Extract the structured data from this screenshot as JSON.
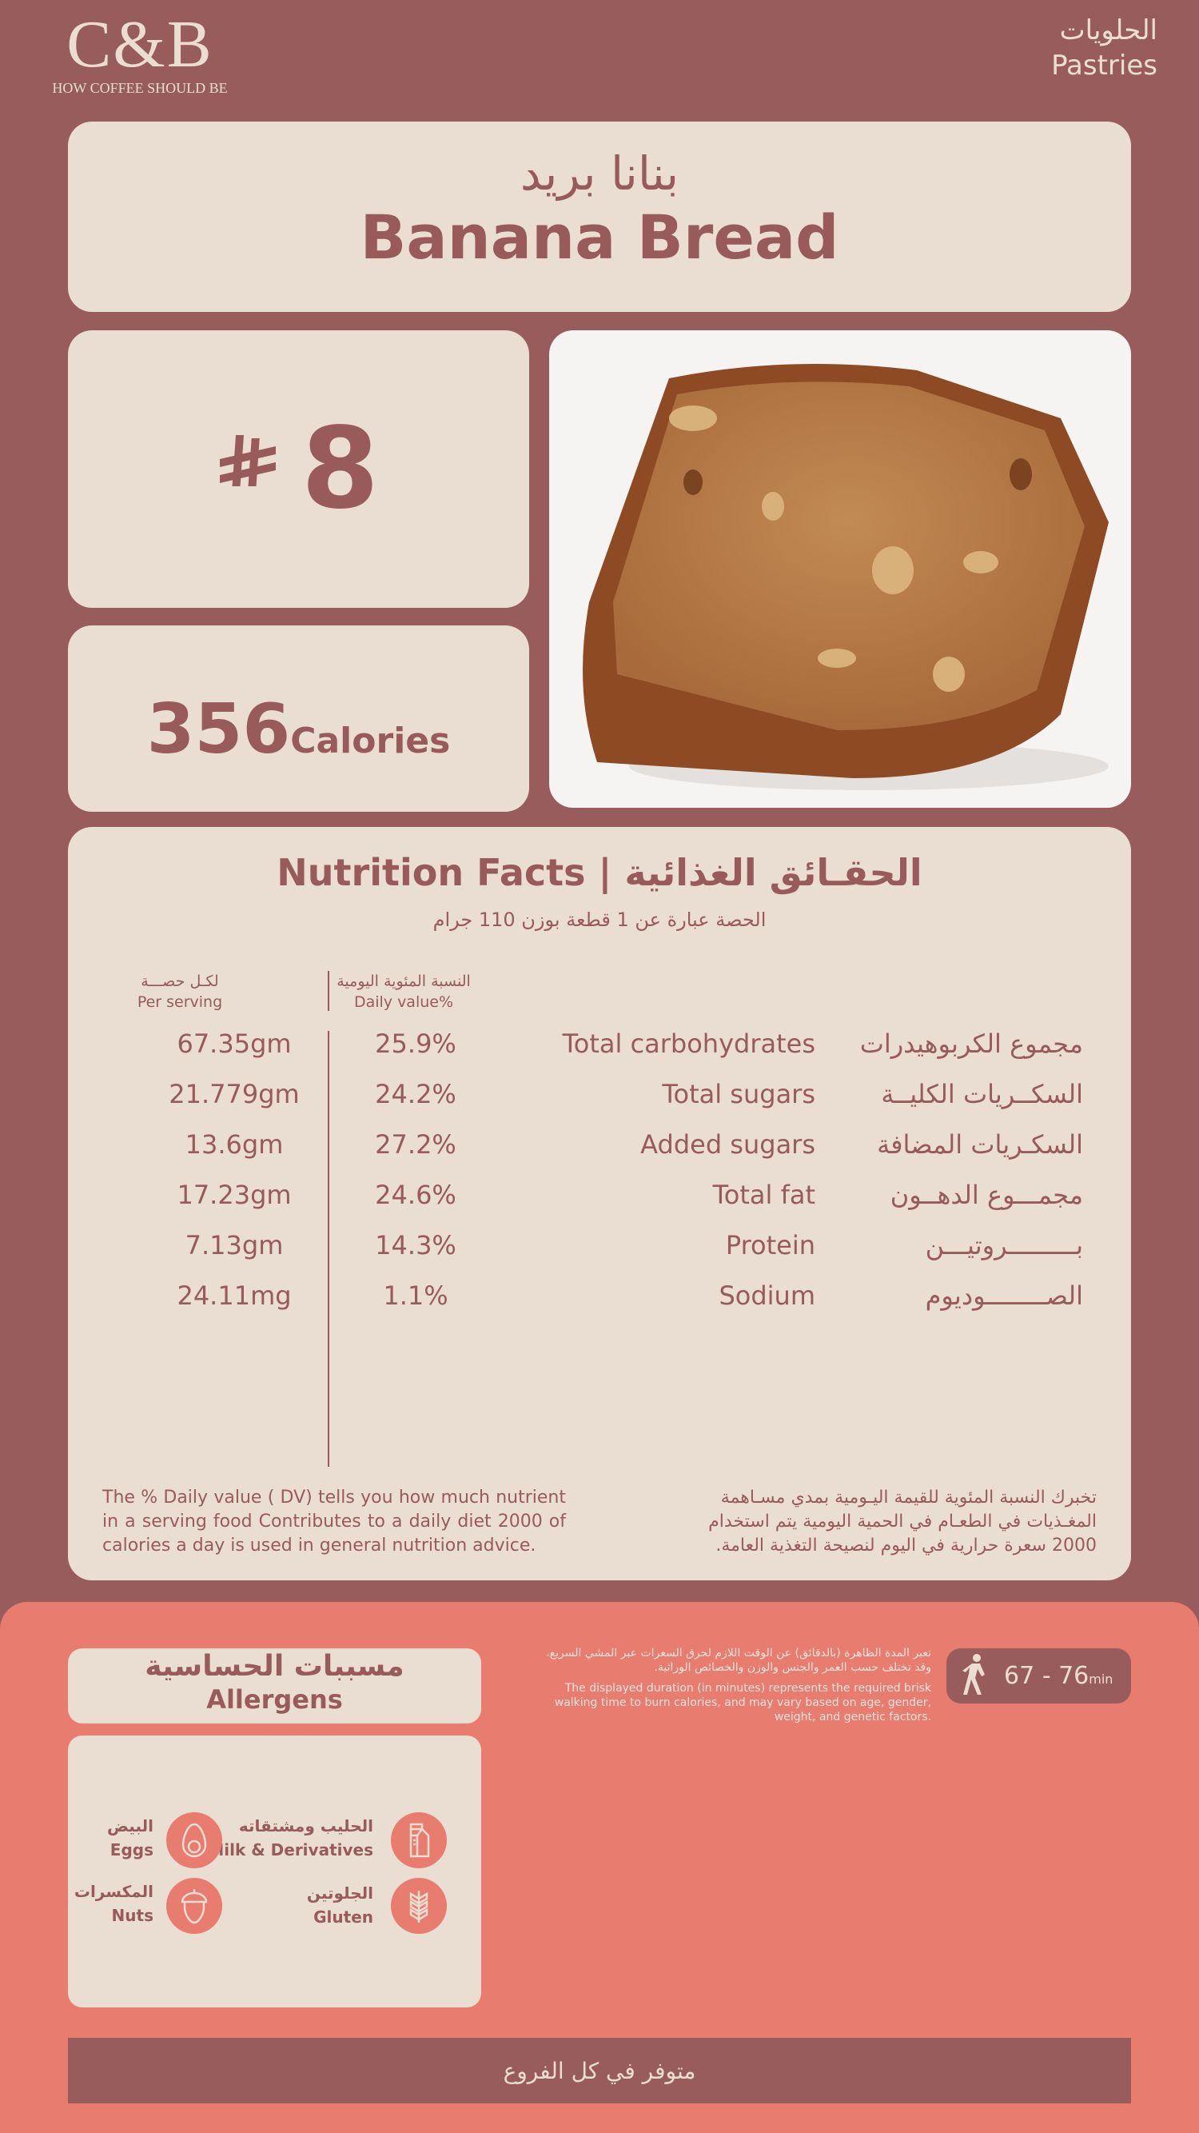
{
  "brand": {
    "logo_text": "C&B",
    "tagline": "HOW COFFEE SHOULD BE"
  },
  "category": {
    "ar": "الحلويات",
    "en": "Pastries"
  },
  "product": {
    "name_ar": "بنانا بريد",
    "name_en": "Banana Bread",
    "price": "8",
    "currency_icon": "saudi-riyal-icon",
    "currency_symbol": "⃁",
    "calories": "356",
    "calories_unit": "Calories"
  },
  "nutrition": {
    "title": "Nutrition Facts | الحقـائق الغذائية",
    "serving": "الحصة عبارة عن 1 قطعة بوزن 110 جرام",
    "col_per_serving_ar": "لكـل حصـــة",
    "col_per_serving_en": "Per serving",
    "col_dv_ar": "النسبة المئوية اليومية",
    "col_dv_en": "Daily value%",
    "rows": [
      {
        "ar": "مجموع الكربوهيدرات",
        "en": "Total carbohydrates",
        "dv": "25.9%",
        "amount": "67.35gm"
      },
      {
        "ar": "السكــريات الكليــة",
        "en": "Total sugars",
        "dv": "24.2%",
        "amount": "21.779gm"
      },
      {
        "ar": "السكـريات المضافة",
        "en": "Added sugars",
        "dv": "27.2%",
        "amount": "13.6gm"
      },
      {
        "ar": "مجمـــوع الدهــون",
        "en": "Total fat",
        "dv": "24.6%",
        "amount": "17.23gm"
      },
      {
        "ar": "بـــــــــروتيـــن",
        "en": "Protein",
        "dv": "14.3%",
        "amount": "7.13gm"
      },
      {
        "ar": "الصــــــــوديوم",
        "en": "Sodium",
        "dv": "1.1%",
        "amount": "24.11mg"
      }
    ],
    "note_en": "The % Daily value ( DV) tells you how much nutrient in a serving food Contributes to a daily diet 2000 of calories a day is used in general nutrition advice.",
    "note_ar": "تخبرك النسبة المئوية للقيمة اليـومية بمدي مسـاهمة المغـذيات في الطعـام في الحمية اليومية يتم استخدام 2000 سعرة حرارية في اليوم لنصيحة التغذية العامة."
  },
  "allergens": {
    "title_ar": "مسببات الحساسية",
    "title_en": "Allergens",
    "items": [
      {
        "ar": "الحليب ومشتقاته",
        "en": "Milk & Derivatives",
        "icon": "milk-carton-icon"
      },
      {
        "ar": "البيض",
        "en": "Eggs",
        "icon": "egg-icon"
      },
      {
        "ar": "الجلوتين",
        "en": "Gluten",
        "icon": "wheat-icon"
      },
      {
        "ar": "المكسرات",
        "en": "Nuts",
        "icon": "acorn-icon"
      }
    ]
  },
  "walking": {
    "value": "67 - 76",
    "unit": "min",
    "icon": "walking-person-icon",
    "note_ar": "تعبر المدة الظاهرة (بالدقائق) عن الوقت اللازم لحرق السعرات عبر المشي السريع، وقد تختلف حسب العمر والجنس والوزن والخصائص الوراثية.",
    "note_en": "The displayed duration (in minutes) represents the required brisk walking time to burn calories, and may vary based on age, gender, weight, and genetic factors."
  },
  "availability": "متوفر في كل الفروع",
  "colors": {
    "background": "#985c5c",
    "card": "#eaded2",
    "accent": "#e87c6e",
    "text": "#985a5a"
  }
}
